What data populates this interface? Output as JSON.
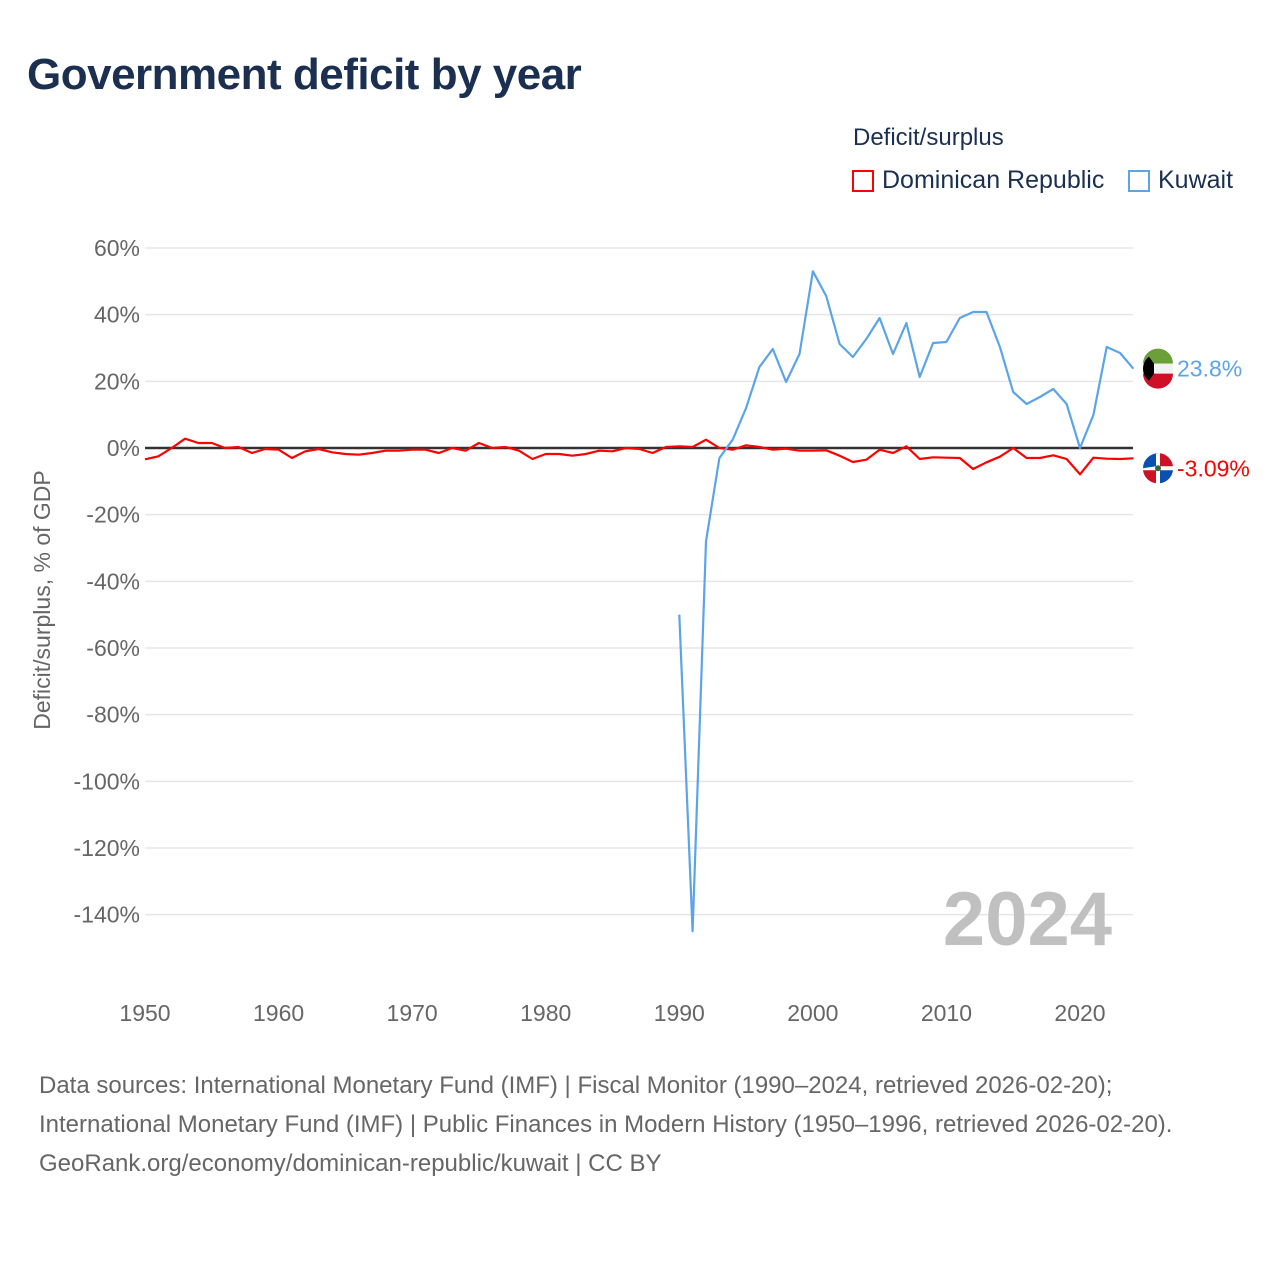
{
  "title": "Government deficit by year",
  "legend": {
    "title": "Deficit/surplus"
  },
  "year_label": "2024",
  "footer": {
    "sources": "Data sources: International Monetary Fund (IMF) | Fiscal Monitor (1990–2024, retrieved 2026-02-20); International Monetary Fund (IMF) | Public Finances in Modern History (1950–1996, retrieved 2026-02-20).",
    "credit": "GeoRank.org/economy/dominican-republic/kuwait | CC BY"
  },
  "chart_data": {
    "type": "line",
    "title": "Government deficit by year",
    "xlabel": "",
    "ylabel": "Deficit/surplus, % of GDP",
    "xlim": [
      1950,
      2024
    ],
    "ylim": [
      -150,
      60
    ],
    "xticks": [
      1950,
      1960,
      1970,
      1980,
      1990,
      2000,
      2010,
      2020
    ],
    "yticks": [
      60,
      40,
      20,
      0,
      -20,
      -40,
      -60,
      -80,
      -100,
      -120,
      -140
    ],
    "ytick_labels": [
      "60%",
      "40%",
      "20%",
      "0%",
      "-20%",
      "-40%",
      "-60%",
      "-80%",
      "-100%",
      "-120%",
      "-140%"
    ],
    "grid": true,
    "legend_position": "top-right",
    "series": [
      {
        "name": "Dominican Republic",
        "color": "#ff0000",
        "end_label": "-3.09%",
        "start_year": 1950,
        "values": [
          -3.4,
          -2.5,
          0,
          2.8,
          1.5,
          1.5,
          0,
          0.3,
          -1.5,
          -0.3,
          -0.5,
          -3,
          -1,
          -0.3,
          -1.3,
          -1.8,
          -2,
          -1.5,
          -0.8,
          -0.8,
          -0.5,
          -0.5,
          -1.5,
          0,
          -0.8,
          1.5,
          0,
          0.3,
          -0.8,
          -3.3,
          -1.8,
          -1.8,
          -2.3,
          -1.8,
          -0.8,
          -1,
          0,
          -0.3,
          -1.5,
          0.3,
          0.5,
          0.3,
          2.5,
          0,
          -0.5,
          0.8,
          0.3,
          -0.5,
          -0.2,
          -0.8,
          -0.8,
          -0.7,
          -2.3,
          -4.2,
          -3.5,
          -0.5,
          -1.5,
          0.5,
          -3.3,
          -2.8,
          -2.9,
          -3,
          -6.3,
          -4.3,
          -2.6,
          0,
          -3,
          -3,
          -2.2,
          -3.3,
          -7.9,
          -2.9,
          -3.2,
          -3.3,
          -3.09
        ]
      },
      {
        "name": "Kuwait",
        "color": "#5ba4e8",
        "end_label": "23.8%",
        "start_year": 1990,
        "values": [
          -50,
          -145,
          -28,
          -3,
          2.5,
          12,
          24.3,
          29.7,
          19.8,
          28.2,
          53,
          45.6,
          31.2,
          27.3,
          32.7,
          39,
          28.2,
          37.5,
          21.3,
          31.5,
          31.8,
          39,
          40.8,
          40.8,
          30.3,
          16.8,
          13.2,
          15.3,
          17.7,
          13.2,
          0,
          9.9,
          30.3,
          28.5,
          23.8
        ]
      }
    ]
  }
}
